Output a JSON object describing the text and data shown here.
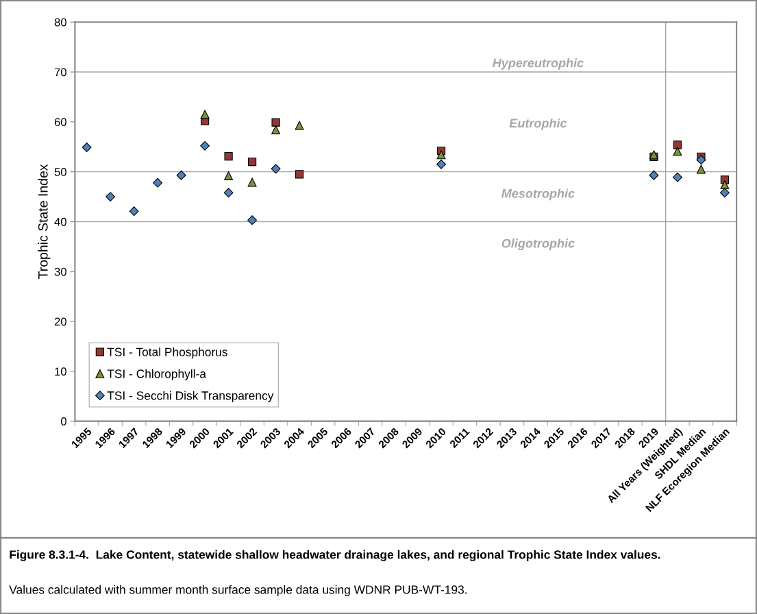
{
  "chart_data": {
    "type": "scatter",
    "categories": [
      "1995",
      "1996",
      "1997",
      "1998",
      "1999",
      "2000",
      "2001",
      "2002",
      "2003",
      "2004",
      "2005",
      "2006",
      "2007",
      "2008",
      "2009",
      "2010",
      "2011",
      "2012",
      "2013",
      "2014",
      "2015",
      "2016",
      "2017",
      "2018",
      "2019",
      "All Years (Weighted)",
      "SHDL Median",
      "NLF Ecoregion Median"
    ],
    "series": [
      {
        "name": "TSI - Total Phosphorus",
        "color": "#953735",
        "marker": "square",
        "values": [
          null,
          null,
          null,
          null,
          null,
          60.2,
          53.1,
          52.0,
          59.9,
          49.5,
          null,
          null,
          null,
          null,
          null,
          54.2,
          null,
          null,
          null,
          null,
          null,
          null,
          null,
          null,
          53.0,
          55.4,
          53.0,
          48.4
        ]
      },
      {
        "name": "TSI - Chlorophyll-a",
        "color": "#77933c",
        "marker": "triangle",
        "values": [
          null,
          null,
          null,
          null,
          null,
          61.5,
          49.2,
          47.9,
          58.4,
          59.3,
          null,
          null,
          null,
          null,
          null,
          53.4,
          null,
          null,
          null,
          null,
          null,
          null,
          null,
          null,
          53.4,
          54.1,
          50.5,
          47.4
        ]
      },
      {
        "name": "TSI - Secchi Disk Transparency",
        "color": "#4f81bd",
        "marker": "diamond",
        "values": [
          54.9,
          45.0,
          42.1,
          47.8,
          49.3,
          55.2,
          45.8,
          40.3,
          50.6,
          null,
          null,
          null,
          null,
          null,
          null,
          51.5,
          null,
          null,
          null,
          null,
          null,
          null,
          null,
          null,
          49.3,
          48.9,
          52.4,
          45.8
        ]
      }
    ],
    "ylabel": "Trophic State Index",
    "ylim": [
      0,
      80
    ],
    "yticks": [
      0,
      10,
      20,
      30,
      40,
      50,
      60,
      70,
      80
    ],
    "grid": false,
    "legend": "bottom left",
    "ref_lines": [
      {
        "axis": "y",
        "value": 40,
        "color": "#a6a6a6"
      },
      {
        "axis": "y",
        "value": 50,
        "color": "#a6a6a6"
      },
      {
        "axis": "y",
        "value": 70,
        "color": "#a6a6a6"
      }
    ],
    "annotations": [
      "Hypereutrophic",
      "Eutrophic",
      "Mesotrophic",
      "Oligotrophic",
      "Figure 8.3.1-4.  Lake Content, statewide shallow headwater drainage lakes, and regional Trophic State Index values.",
      "Values calculated with summer month surface sample data using WDNR PUB-WT-193."
    ]
  }
}
